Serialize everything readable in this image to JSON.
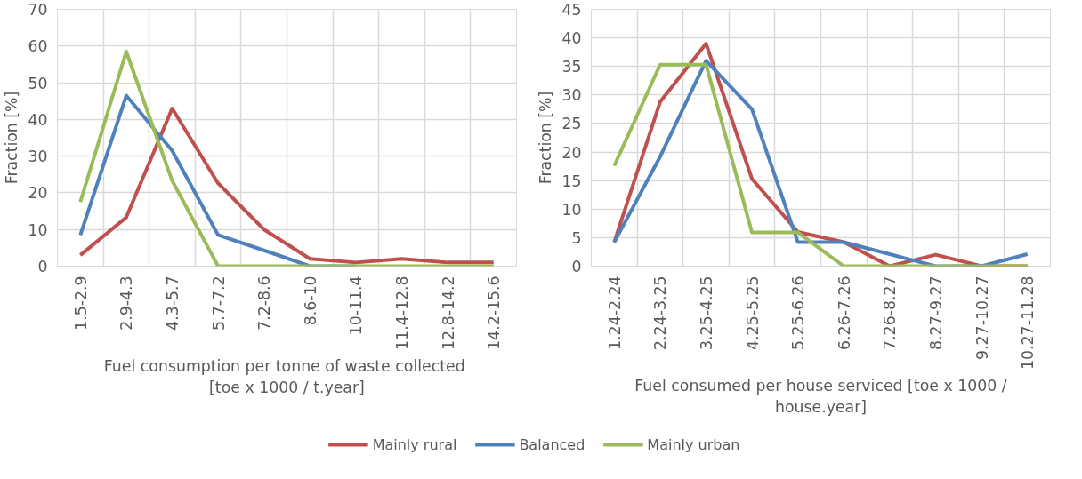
{
  "chart_data": [
    {
      "type": "line",
      "xlabel": "Fuel consumption per  tonne of waste collected [toe x 1000 / t.year]",
      "ylabel": "Fraction [%]",
      "categories": [
        "1.5-2.9",
        "2.9-4.3",
        "4.3-5.7",
        "5.7-7.2",
        "7.2-8.6",
        "8.6-10",
        "10-11.4",
        "11.4-12.8",
        "12.8-14.2",
        "14.2-15.6"
      ],
      "ylim": [
        0,
        70
      ],
      "yticks": [
        0,
        10,
        20,
        30,
        40,
        50,
        60,
        70
      ],
      "grid": true,
      "legend": "bottom",
      "line_style": "solid",
      "marker": "none",
      "series": [
        {
          "name": "Mainly rural",
          "color": "#c0504d",
          "values": [
            3,
            13.3,
            43,
            22.6,
            10,
            2,
            1,
            2,
            1,
            1
          ]
        },
        {
          "name": "Balanced",
          "color": "#4f81bd",
          "values": [
            8.5,
            46.5,
            31.5,
            8.5,
            4.3,
            0,
            0,
            null,
            null,
            null
          ]
        },
        {
          "name": "Mainly urban",
          "color": "#9bbb59",
          "values": [
            17.5,
            58.5,
            23.3,
            0,
            0,
            0,
            0,
            0,
            0,
            0
          ]
        }
      ]
    },
    {
      "type": "line",
      "xlabel": "Fuel consumed per house serviced [toe x 1000 / house.year]",
      "ylabel": "Fraction [%]",
      "categories": [
        "1.24-2.24",
        "2.24-3.25",
        "3.25-4.25",
        "4.25-5.25",
        "5.25-6.26",
        "6.26-7.26",
        "7.26-8.27",
        "8.27-9.27",
        "9.27-10.27",
        "10.27-11.28"
      ],
      "ylim": [
        0,
        45
      ],
      "yticks": [
        0,
        5,
        10,
        15,
        20,
        25,
        30,
        35,
        40,
        45
      ],
      "grid": true,
      "line_style": "solid",
      "marker": "none",
      "series": [
        {
          "color": "#c0504d",
          "values": [
            4.2,
            28.8,
            39,
            15.3,
            6,
            4.2,
            0,
            2,
            0,
            0
          ]
        },
        {
          "color": "#4f81bd",
          "values": [
            4.2,
            19.2,
            36,
            27.5,
            4.2,
            4.2,
            2.1,
            0,
            0,
            2.1
          ]
        },
        {
          "color": "#9bbb59",
          "values": [
            17.6,
            35.3,
            35.3,
            5.9,
            5.9,
            0,
            0,
            0,
            0,
            0
          ]
        }
      ]
    }
  ]
}
